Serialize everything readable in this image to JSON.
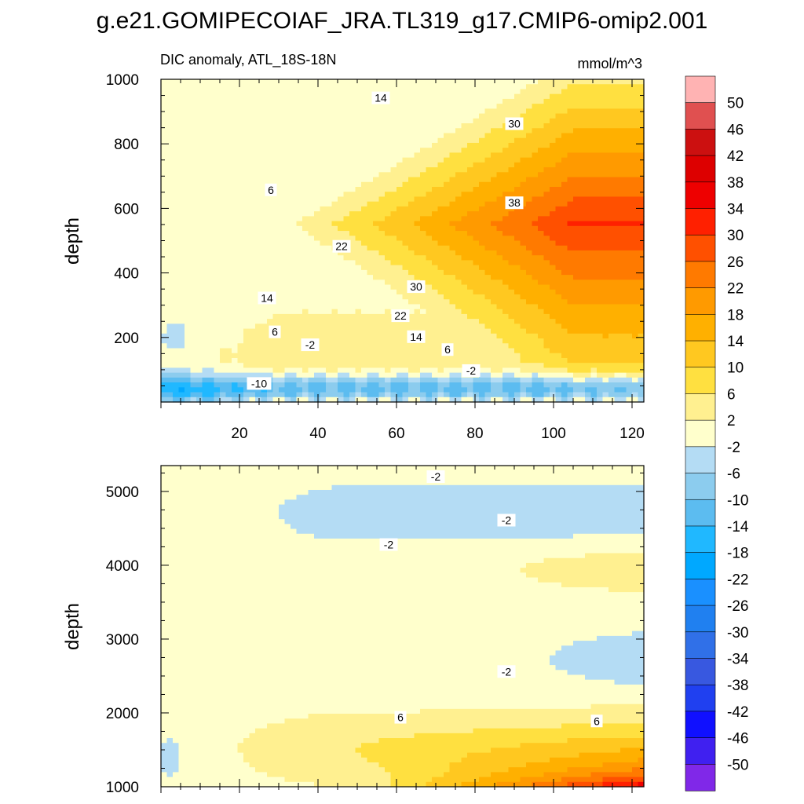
{
  "title": "g.e21.GOMIPECOIAF_JRA.TL319_g17.CMIP6-omip2.001",
  "colorbar": {
    "levels": [
      "50",
      "46",
      "42",
      "38",
      "34",
      "30",
      "26",
      "22",
      "18",
      "14",
      "10",
      "6",
      "2",
      "-2",
      "-6",
      "-10",
      "-14",
      "-18",
      "-22",
      "-26",
      "-30",
      "-34",
      "-38",
      "-42",
      "-46",
      "-50"
    ],
    "colors": [
      "#ffb3b3",
      "#e05050",
      "#cc1010",
      "#dd0000",
      "#ee0000",
      "#ff2000",
      "#ff5000",
      "#ff7a00",
      "#ff9a00",
      "#ffb000",
      "#ffc820",
      "#ffe040",
      "#fff090",
      "#ffffcc",
      "#b4dcf4",
      "#8cccee",
      "#5cbcf0",
      "#20b8ff",
      "#00a8ff",
      "#1a90ff",
      "#2080f0",
      "#3070e8",
      "#3858e0",
      "#2040f0",
      "#1010ff",
      "#4020f0",
      "#8028e8"
    ]
  },
  "chart_data": [
    {
      "type": "contour",
      "subtitle_left": "DIC anomaly, ATL_18S-18N",
      "subtitle_right": "mmol/m^3",
      "xlabel": "",
      "ylabel": "depth",
      "xlim": [
        0,
        123
      ],
      "ylim": [
        1000,
        0
      ],
      "x_ticks": [
        20,
        40,
        60,
        80,
        100,
        120
      ],
      "y_ticks": [
        200,
        400,
        600,
        800,
        1000
      ],
      "contour_interval": 4,
      "contour_labels": [
        {
          "text": "-10",
          "x": 25,
          "y": 55
        },
        {
          "text": "-2",
          "x": 38,
          "y": 175
        },
        {
          "text": "-2",
          "x": 79,
          "y": 95
        },
        {
          "text": "6",
          "x": 73,
          "y": 160
        },
        {
          "text": "14",
          "x": 65,
          "y": 200
        },
        {
          "text": "6",
          "x": 29,
          "y": 215
        },
        {
          "text": "22",
          "x": 61,
          "y": 265
        },
        {
          "text": "14",
          "x": 27,
          "y": 320
        },
        {
          "text": "30",
          "x": 65,
          "y": 355
        },
        {
          "text": "22",
          "x": 46,
          "y": 480
        },
        {
          "text": "38",
          "x": 90,
          "y": 615
        },
        {
          "text": "6",
          "x": 28,
          "y": 655
        },
        {
          "text": "30",
          "x": 90,
          "y": 860
        },
        {
          "text": "14",
          "x": 56,
          "y": 940
        }
      ]
    },
    {
      "type": "contour",
      "xlabel": "",
      "ylabel": "depth",
      "xlim": [
        0,
        123
      ],
      "ylim": [
        5350,
        1000
      ],
      "y_ticks": [
        1000,
        2000,
        3000,
        4000,
        5000
      ],
      "contour_interval": 4,
      "contour_labels": [
        {
          "text": "6",
          "x": 61,
          "y": 1930
        },
        {
          "text": "6",
          "x": 111,
          "y": 1880
        },
        {
          "text": "-2",
          "x": 88,
          "y": 2550
        },
        {
          "text": "-2",
          "x": 58,
          "y": 4270
        },
        {
          "text": "-2",
          "x": 88,
          "y": 4600
        },
        {
          "text": "-2",
          "x": 70,
          "y": 5190
        }
      ]
    }
  ]
}
